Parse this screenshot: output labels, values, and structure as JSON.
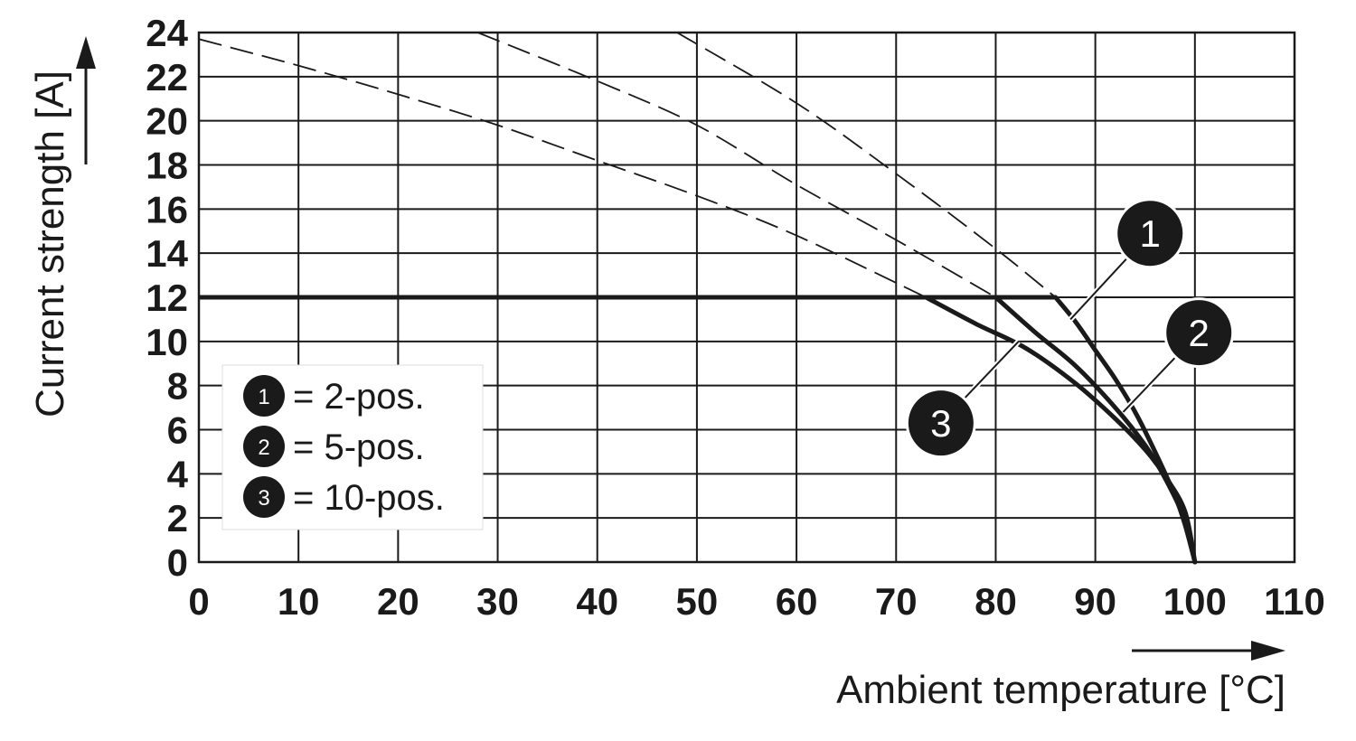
{
  "chart_data": {
    "type": "line",
    "title": "",
    "xlabel": "Ambient temperature [°C]",
    "ylabel": "Current strength [A]",
    "xlim": [
      0,
      110
    ],
    "ylim": [
      0,
      24
    ],
    "x_ticks": [
      0,
      10,
      20,
      30,
      40,
      50,
      60,
      70,
      80,
      90,
      100,
      110
    ],
    "y_ticks": [
      0,
      2,
      4,
      6,
      8,
      10,
      12,
      14,
      16,
      18,
      20,
      22,
      24
    ],
    "grid": true,
    "limit_line": {
      "y": 12,
      "x": [
        0,
        86
      ]
    },
    "series": [
      {
        "name": "2-pos.",
        "marker": "1",
        "x": [
          86,
          88,
          90,
          92,
          94,
          96,
          98,
          99,
          100
        ],
        "y": [
          12,
          10.9,
          9.6,
          8.3,
          6.8,
          5.0,
          3.0,
          1.7,
          0
        ]
      },
      {
        "name": "5-pos.",
        "marker": "2",
        "x": [
          80,
          84,
          88,
          92,
          95,
          97,
          99,
          100
        ],
        "y": [
          12,
          10.4,
          8.9,
          7.0,
          5.3,
          3.8,
          1.9,
          0
        ]
      },
      {
        "name": "10-pos.",
        "marker": "3",
        "x": [
          73,
          78,
          83,
          88,
          92,
          95,
          97,
          99,
          100
        ],
        "y": [
          12,
          10.8,
          9.7,
          8.1,
          6.5,
          5.1,
          3.9,
          2.3,
          0
        ]
      }
    ],
    "extrapolated_dashed": [
      {
        "marker": "1",
        "x": [
          48,
          60,
          70,
          80,
          86
        ],
        "y": [
          24,
          20.8,
          17.6,
          14.2,
          12
        ]
      },
      {
        "marker": "2",
        "x": [
          28,
          40,
          50,
          60,
          70,
          80
        ],
        "y": [
          24,
          21.8,
          19.8,
          17.1,
          14.6,
          12
        ]
      },
      {
        "marker": "3",
        "x": [
          0,
          10,
          20,
          30,
          40,
          50,
          60,
          73
        ],
        "y": [
          23.7,
          22.5,
          21.2,
          19.8,
          18.2,
          16.6,
          14.8,
          12
        ]
      }
    ],
    "legend_position": "bottom-left"
  },
  "legend": [
    {
      "marker": "1",
      "text": "= 2-pos."
    },
    {
      "marker": "2",
      "text": "= 5-pos."
    },
    {
      "marker": "3",
      "text": "= 10-pos."
    }
  ],
  "callouts": [
    "1",
    "2",
    "3"
  ]
}
